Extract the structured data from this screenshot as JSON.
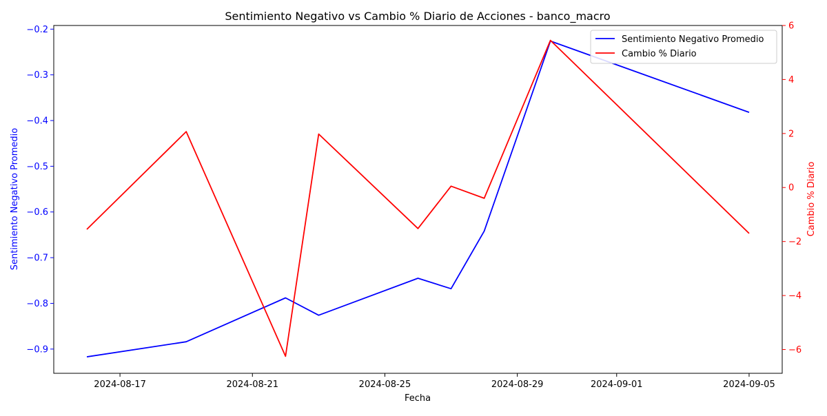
{
  "chart_data": {
    "type": "line",
    "title": "Sentimiento Negativo vs Cambio % Diario de Acciones - banco_macro",
    "xlabel": "Fecha",
    "ylabel_left": "Sentimiento Negativo Promedio",
    "ylabel_right": "Cambio % Diario",
    "xlim": [
      "2024-08-15",
      "2024-09-06"
    ],
    "ylim_left": [
      -0.953,
      -0.192
    ],
    "ylim_right": [
      -6.88,
      6.0
    ],
    "x_ticks": [
      "2024-08-17",
      "2024-08-21",
      "2024-08-25",
      "2024-08-29",
      "2024-09-01",
      "2024-09-05"
    ],
    "y_ticks_left": [
      "-0.9",
      "-0.8",
      "-0.7",
      "-0.6",
      "-0.5",
      "-0.4",
      "-0.3",
      "-0.2"
    ],
    "y_ticks_right": [
      "-6",
      "-4",
      "-2",
      "0",
      "2",
      "4",
      "6"
    ],
    "legend_position": "top-right",
    "grid": false,
    "series": [
      {
        "name": "Sentimiento Negativo Promedio",
        "axis": "left",
        "color": "#0000ff",
        "x": [
          "2024-08-16",
          "2024-08-19",
          "2024-08-22",
          "2024-08-23",
          "2024-08-26",
          "2024-08-27",
          "2024-08-28",
          "2024-08-30",
          "2024-09-05"
        ],
        "y": [
          -0.917,
          -0.884,
          -0.788,
          -0.826,
          -0.745,
          -0.768,
          -0.642,
          -0.226,
          -0.382
        ]
      },
      {
        "name": "Cambio % Diario",
        "axis": "right",
        "color": "#ff0000",
        "x": [
          "2024-08-16",
          "2024-08-19",
          "2024-08-22",
          "2024-08-23",
          "2024-08-26",
          "2024-08-27",
          "2024-08-28",
          "2024-08-30",
          "2024-09-05"
        ],
        "y": [
          -1.55,
          2.07,
          -6.25,
          1.98,
          -1.52,
          0.05,
          -0.4,
          5.45,
          -1.7
        ]
      }
    ]
  }
}
